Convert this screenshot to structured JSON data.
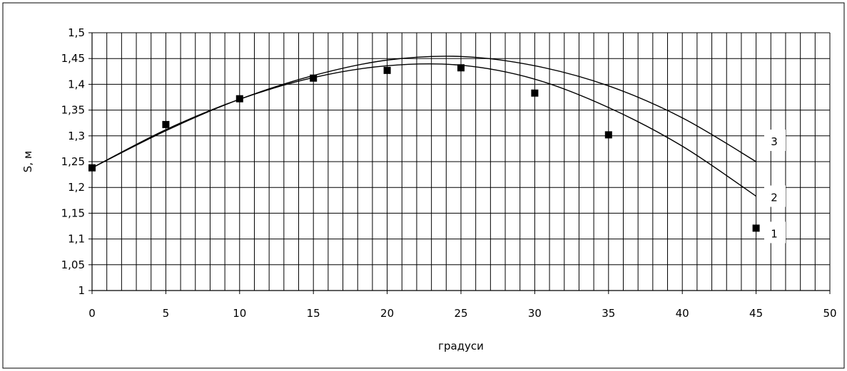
{
  "chart_data": {
    "type": "scatter",
    "title": "",
    "xlabel": "градуси",
    "ylabel": "S, м",
    "xlim": [
      0,
      50
    ],
    "ylim": [
      1,
      1.5
    ],
    "grid": true,
    "legend": "right, series labels next to line ends",
    "x_ticks": [
      "0",
      "5",
      "10",
      "15",
      "20",
      "25",
      "30",
      "35",
      "40",
      "45",
      "50"
    ],
    "y_ticks": [
      "1",
      "1,05",
      "1,1",
      "1,15",
      "1,2",
      "1,25",
      "1,3",
      "1,35",
      "1,4",
      "1,45",
      "1,5"
    ],
    "series": [
      {
        "name": "1",
        "kind": "points",
        "x": [
          0,
          5,
          10,
          15,
          20,
          25,
          30,
          35,
          45
        ],
        "y": [
          1.238,
          1.322,
          1.372,
          1.412,
          1.427,
          1.432,
          1.383,
          1.302,
          1.121
        ]
      },
      {
        "name": "2",
        "kind": "line",
        "x": [
          0,
          5,
          10,
          15,
          20,
          25,
          30,
          35,
          40,
          45
        ],
        "y": [
          1.238,
          1.312,
          1.371,
          1.413,
          1.436,
          1.437,
          1.41,
          1.355,
          1.28,
          1.183
        ]
      },
      {
        "name": "3",
        "kind": "line",
        "x": [
          0,
          5,
          10,
          15,
          20,
          25,
          30,
          35,
          40,
          45
        ],
        "y": [
          1.238,
          1.31,
          1.371,
          1.417,
          1.447,
          1.454,
          1.436,
          1.397,
          1.335,
          1.25
        ]
      }
    ],
    "colors": {
      "line": "#000000",
      "grid": "#000000",
      "marker": "#000000"
    }
  }
}
